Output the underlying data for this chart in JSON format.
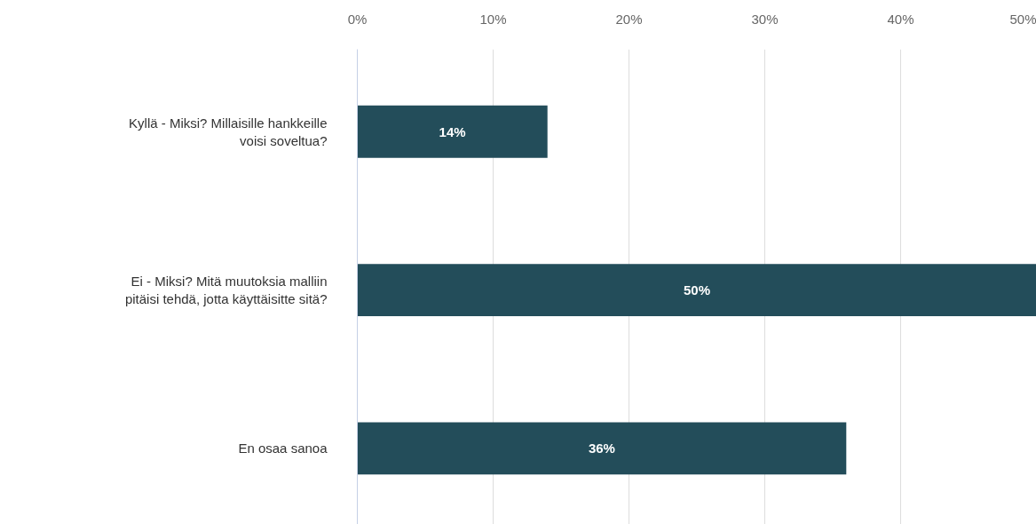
{
  "chart_data": {
    "type": "bar",
    "orientation": "horizontal",
    "categories": [
      "Kyllä - Miksi? Millaisille hankkeille voisi soveltua?",
      "Ei - Miksi? Mitä muutoksia malliin pitäisi tehdä, jotta käyttäisitte sitä?",
      "En osaa sanoa"
    ],
    "values": [
      14,
      50,
      36
    ],
    "color": "#234d5a",
    "value_labels": [
      "14%",
      "50%",
      "36%"
    ],
    "xlim": [
      0,
      50
    ],
    "xticks": [
      {
        "value": 0,
        "label": "0%"
      },
      {
        "value": 10,
        "label": "10%"
      },
      {
        "value": 20,
        "label": "20%"
      },
      {
        "value": 30,
        "label": "30%"
      },
      {
        "value": 40,
        "label": "40%"
      },
      {
        "value": 50,
        "label": "50%"
      }
    ],
    "grid": "x"
  }
}
